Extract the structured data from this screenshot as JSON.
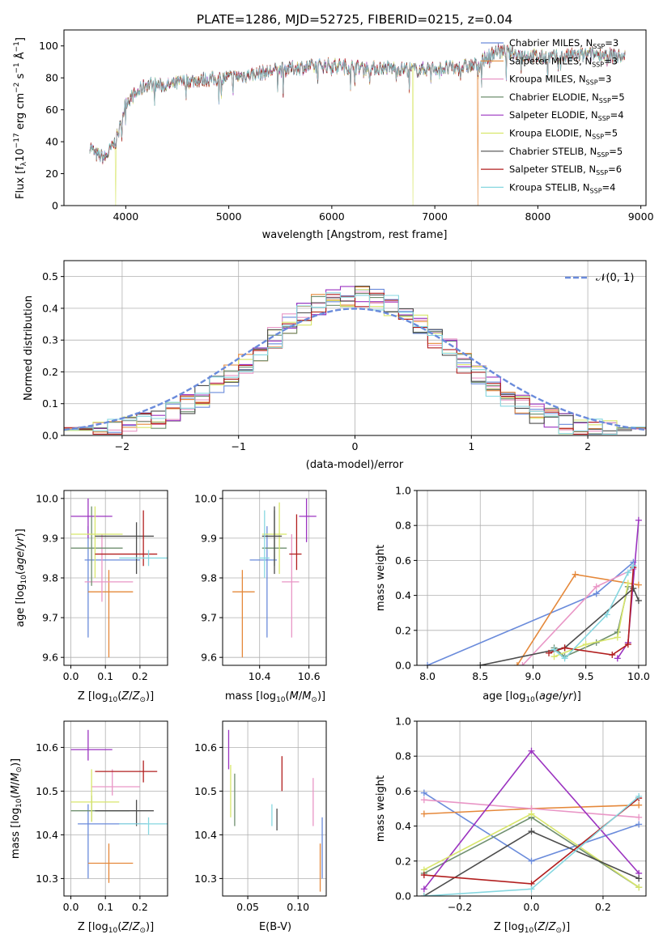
{
  "colors": {
    "c0": "#6a8bdb",
    "c1": "#e5883a",
    "c2": "#e996c6",
    "c3": "#6f8f6f",
    "c4": "#9b33c0",
    "c5": "#d8e66b",
    "c6": "#4c4c4c",
    "c7": "#b21f1f",
    "c8": "#86d7e0",
    "dashed": "#6a8bdb",
    "grid": "#b0b0b0"
  },
  "chart_data": [
    {
      "id": "spectrum",
      "type": "line",
      "title": "PLATE=1286, MJD=52725, FIBERID=0215, z=0.04",
      "xlabel": "wavelength [Angstrom, rest frame]",
      "ylabel": "Flux [fλ10⁻¹⁷ erg cm⁻² s⁻¹ Å⁻¹]",
      "xlim": [
        3400,
        9050
      ],
      "ylim": [
        0,
        110
      ],
      "xticks": [
        "4000",
        "5000",
        "6000",
        "7000",
        "8000",
        "9000"
      ],
      "yticks": [
        "0",
        "20",
        "40",
        "60",
        "80",
        "100"
      ],
      "grid": false,
      "legend_position": "top-right",
      "series": [
        {
          "name": "Chabrier MILES, N",
          "sub": "SSP",
          "suffix": "=3"
        },
        {
          "name": "Salpeter MILES, N",
          "sub": "SSP",
          "suffix": "=3"
        },
        {
          "name": "Kroupa MILES, N",
          "sub": "SSP",
          "suffix": "=3"
        },
        {
          "name": "Chabrier ELODIE, N",
          "sub": "SSP",
          "suffix": "=5"
        },
        {
          "name": "Salpeter ELODIE, N",
          "sub": "SSP",
          "suffix": "=4"
        },
        {
          "name": "Kroupa ELODIE, N",
          "sub": "SSP",
          "suffix": "=5"
        },
        {
          "name": "Chabrier STELIB, N",
          "sub": "SSP",
          "suffix": "=5"
        },
        {
          "name": "Salpeter STELIB, N",
          "sub": "SSP",
          "suffix": "=6"
        },
        {
          "name": "Kroupa STELIB, N",
          "sub": "SSP",
          "suffix": "=4"
        }
      ],
      "continuum": [
        [
          3650,
          38
        ],
        [
          3700,
          32
        ],
        [
          3800,
          30
        ],
        [
          3900,
          40
        ],
        [
          3950,
          50
        ],
        [
          4000,
          65
        ],
        [
          4100,
          70
        ],
        [
          4200,
          76
        ],
        [
          4400,
          75
        ],
        [
          4600,
          78
        ],
        [
          4800,
          79
        ],
        [
          5000,
          80
        ],
        [
          5200,
          82
        ],
        [
          5400,
          84
        ],
        [
          5600,
          86
        ],
        [
          5800,
          87
        ],
        [
          6000,
          88
        ],
        [
          6200,
          87
        ],
        [
          6400,
          86
        ],
        [
          6600,
          86
        ],
        [
          6800,
          85
        ],
        [
          7000,
          86
        ],
        [
          7200,
          86
        ],
        [
          7400,
          88
        ],
        [
          7600,
          97
        ],
        [
          7800,
          95
        ],
        [
          8000,
          93
        ],
        [
          8200,
          93
        ],
        [
          8400,
          94
        ],
        [
          8600,
          95
        ],
        [
          8800,
          93
        ]
      ],
      "drops": [
        [
          3900,
          "c5",
          0
        ],
        [
          6790,
          "c5",
          0
        ],
        [
          7420,
          "c1",
          0
        ]
      ]
    },
    {
      "id": "residuals",
      "type": "step-histogram",
      "xlabel": "(data-model)/error",
      "ylabel": "Normed distribution",
      "xlim": [
        -2.5,
        2.5
      ],
      "ylim": [
        0,
        0.55
      ],
      "xticks": [
        "−2",
        "−1",
        "0",
        "1",
        "2"
      ],
      "yticks": [
        "0.0",
        "0.1",
        "0.2",
        "0.3",
        "0.4",
        "0.5"
      ],
      "grid": true,
      "legend_position": "top-right",
      "legend_label": "𝒩(0, 1)",
      "bin_width": 0.125
    },
    {
      "id": "age-vs-Z",
      "type": "errorbar",
      "xlabel": "Z [log₁₀(Z/Z⊙)]",
      "ylabel": "age  [log₁₀(age/yr)]",
      "xlim": [
        -0.02,
        0.28
      ],
      "ylim": [
        9.58,
        10.02
      ],
      "xticks": [
        "0.0",
        "0.1",
        "0.2"
      ],
      "yticks": [
        "9.6",
        "9.7",
        "9.8",
        "9.9",
        "10.0"
      ],
      "points": [
        {
          "c": "c0",
          "x": 0.05,
          "y": 9.845,
          "xe": [
            0.04,
            0.2
          ],
          "ye": [
            9.65,
            9.93
          ]
        },
        {
          "c": "c1",
          "x": 0.11,
          "y": 9.765,
          "xe": [
            0.05,
            0.18
          ],
          "ye": [
            9.6,
            9.82
          ]
        },
        {
          "c": "c2",
          "x": 0.09,
          "y": 9.79,
          "xe": [
            0.04,
            0.18
          ],
          "ye": [
            9.74,
            9.91
          ]
        },
        {
          "c": "c3",
          "x": 0.06,
          "y": 9.875,
          "xe": [
            0.0,
            0.15
          ],
          "ye": [
            9.78,
            9.98
          ]
        },
        {
          "c": "c4",
          "x": 0.05,
          "y": 9.955,
          "xe": [
            0.0,
            0.12
          ],
          "ye": [
            9.9,
            10.0
          ]
        },
        {
          "c": "c5",
          "x": 0.07,
          "y": 9.91,
          "xe": [
            0.0,
            0.15
          ],
          "ye": [
            9.8,
            9.98
          ]
        },
        {
          "c": "c6",
          "x": 0.19,
          "y": 9.905,
          "xe": [
            0.07,
            0.24
          ],
          "ye": [
            9.81,
            9.94
          ]
        },
        {
          "c": "c7",
          "x": 0.21,
          "y": 9.86,
          "xe": [
            0.07,
            0.25
          ],
          "ye": [
            9.83,
            9.97
          ]
        },
        {
          "c": "c8",
          "x": 0.225,
          "y": 9.85,
          "xe": [
            0.14,
            0.28
          ],
          "ye": [
            9.83,
            9.87
          ]
        }
      ]
    },
    {
      "id": "age-vs-mass",
      "type": "errorbar",
      "xlabel": "mass [log₁₀(M/M⊙)]",
      "ylabel": "",
      "xlim": [
        10.25,
        10.67
      ],
      "ylim": [
        9.58,
        10.02
      ],
      "xticks": [
        "10.4",
        "10.6"
      ],
      "yticks": [
        "9.6",
        "9.7",
        "9.8",
        "9.9",
        "10.0"
      ],
      "points": [
        {
          "c": "c0",
          "x": 10.43,
          "y": 9.845,
          "xe": [
            10.36,
            10.47
          ],
          "ye": [
            9.65,
            9.93
          ]
        },
        {
          "c": "c1",
          "x": 10.33,
          "y": 9.765,
          "xe": [
            10.29,
            10.38
          ],
          "ye": [
            9.6,
            9.82
          ]
        },
        {
          "c": "c2",
          "x": 10.53,
          "y": 9.79,
          "xe": [
            10.49,
            10.56
          ],
          "ye": [
            9.65,
            9.91
          ]
        },
        {
          "c": "c3",
          "x": 10.46,
          "y": 9.875,
          "xe": [
            10.41,
            10.51
          ],
          "ye": [
            9.83,
            9.97
          ]
        },
        {
          "c": "c4",
          "x": 10.59,
          "y": 9.955,
          "xe": [
            10.56,
            10.63
          ],
          "ye": [
            9.89,
            10.0
          ]
        },
        {
          "c": "c5",
          "x": 10.48,
          "y": 9.91,
          "xe": [
            10.41,
            10.51
          ],
          "ye": [
            9.81,
            9.99
          ]
        },
        {
          "c": "c6",
          "x": 10.46,
          "y": 9.905,
          "xe": [
            10.41,
            10.49
          ],
          "ye": [
            9.81,
            9.98
          ]
        },
        {
          "c": "c7",
          "x": 10.55,
          "y": 9.86,
          "xe": [
            10.52,
            10.57
          ],
          "ye": [
            9.82,
            9.96
          ]
        },
        {
          "c": "c8",
          "x": 10.42,
          "y": 9.85,
          "xe": [
            10.4,
            10.44
          ],
          "ye": [
            9.8,
            9.97
          ]
        }
      ]
    },
    {
      "id": "massweight-vs-age",
      "type": "line",
      "xlabel": "age  [log₁₀(age/yr)]",
      "ylabel": "mass weight",
      "xlim": [
        7.9,
        10.07
      ],
      "ylim": [
        0,
        1.0
      ],
      "xticks": [
        "8.0",
        "8.5",
        "9.0",
        "9.5",
        "10.0"
      ],
      "yticks": [
        "0.0",
        "0.2",
        "0.4",
        "0.6",
        "0.8",
        "1.0"
      ],
      "grid": true,
      "series": [
        {
          "c": "c0",
          "x": [
            8.0,
            9.6,
            9.95
          ],
          "y": [
            0.0,
            0.41,
            0.59
          ]
        },
        {
          "c": "c1",
          "x": [
            8.85,
            9.4,
            10.0
          ],
          "y": [
            0.0,
            0.52,
            0.46
          ]
        },
        {
          "c": "c2",
          "x": [
            8.9,
            9.6,
            9.95
          ],
          "y": [
            0.0,
            0.45,
            0.55
          ]
        },
        {
          "c": "c3",
          "x": [
            9.2,
            9.3,
            9.6,
            9.8,
            9.9
          ],
          "y": [
            0.1,
            0.05,
            0.13,
            0.19,
            0.45
          ]
        },
        {
          "c": "c4",
          "x": [
            9.8,
            9.9,
            10.0
          ],
          "y": [
            0.04,
            0.13,
            0.83
          ]
        },
        {
          "c": "c5",
          "x": [
            9.2,
            9.5,
            9.8,
            9.9
          ],
          "y": [
            0.05,
            0.12,
            0.16,
            0.47
          ]
        },
        {
          "c": "c6",
          "x": [
            8.5,
            9.3,
            9.95,
            10.0
          ],
          "y": [
            0.0,
            0.1,
            0.44,
            0.37
          ]
        },
        {
          "c": "c7",
          "x": [
            9.15,
            9.3,
            9.75,
            9.9,
            9.95
          ],
          "y": [
            0.07,
            0.1,
            0.06,
            0.12,
            0.56
          ]
        },
        {
          "c": "c8",
          "x": [
            9.2,
            9.3,
            9.7,
            9.9,
            9.95
          ],
          "y": [
            0.09,
            0.04,
            0.29,
            0.53,
            0.57
          ]
        }
      ]
    },
    {
      "id": "mass-vs-Z",
      "type": "errorbar",
      "xlabel": "Z [log₁₀(Z/Z⊙)]",
      "ylabel": "mass [log₁₀(M/M⊙)]",
      "xlim": [
        -0.02,
        0.28
      ],
      "ylim": [
        10.26,
        10.66
      ],
      "xticks": [
        "0.0",
        "0.1",
        "0.2"
      ],
      "yticks": [
        "10.3",
        "10.4",
        "10.5",
        "10.6"
      ],
      "points": [
        {
          "c": "c0",
          "x": 0.05,
          "y": 10.425,
          "xe": [
            0.02,
            0.22
          ],
          "ye": [
            10.3,
            10.47
          ]
        },
        {
          "c": "c1",
          "x": 0.11,
          "y": 10.335,
          "xe": [
            0.05,
            0.18
          ],
          "ye": [
            10.29,
            10.38
          ]
        },
        {
          "c": "c2",
          "x": 0.12,
          "y": 10.51,
          "xe": [
            0.06,
            0.2
          ],
          "ye": [
            10.49,
            10.55
          ]
        },
        {
          "c": "c3",
          "x": 0.06,
          "y": 10.455,
          "xe": [
            0.0,
            0.17
          ],
          "ye": [
            10.43,
            10.49
          ]
        },
        {
          "c": "c4",
          "x": 0.05,
          "y": 10.595,
          "xe": [
            0.0,
            0.12
          ],
          "ye": [
            10.57,
            10.64
          ]
        },
        {
          "c": "c5",
          "x": 0.06,
          "y": 10.475,
          "xe": [
            0.0,
            0.14
          ],
          "ye": [
            10.43,
            10.55
          ]
        },
        {
          "c": "c6",
          "x": 0.19,
          "y": 10.455,
          "xe": [
            0.07,
            0.24
          ],
          "ye": [
            10.42,
            10.48
          ]
        },
        {
          "c": "c7",
          "x": 0.21,
          "y": 10.545,
          "xe": [
            0.07,
            0.25
          ],
          "ye": [
            10.52,
            10.57
          ]
        },
        {
          "c": "c8",
          "x": 0.225,
          "y": 10.425,
          "xe": [
            0.14,
            0.28
          ],
          "ye": [
            10.4,
            10.44
          ]
        }
      ]
    },
    {
      "id": "mass-vs-EBV",
      "type": "errorbar",
      "xlabel": "E(B-V)",
      "ylabel": "",
      "xlim": [
        0.025,
        0.128
      ],
      "ylim": [
        10.26,
        10.66
      ],
      "xticks": [
        "0.05",
        "0.10"
      ],
      "yticks": [
        "10.3",
        "10.4",
        "10.5",
        "10.6"
      ],
      "points": [
        {
          "c": "c0",
          "x": 0.124,
          "y": 10.38,
          "xe": [
            0.124,
            0.124
          ],
          "ye": [
            10.3,
            10.44
          ]
        },
        {
          "c": "c1",
          "x": 0.122,
          "y": 10.32,
          "xe": [
            0.122,
            0.122
          ],
          "ye": [
            10.27,
            10.38
          ]
        },
        {
          "c": "c2",
          "x": 0.115,
          "y": 10.48,
          "xe": [
            0.115,
            0.115
          ],
          "ye": [
            10.42,
            10.53
          ]
        },
        {
          "c": "c3",
          "x": 0.037,
          "y": 10.48,
          "xe": [
            0.037,
            0.037
          ],
          "ye": [
            10.42,
            10.54
          ]
        },
        {
          "c": "c4",
          "x": 0.031,
          "y": 10.6,
          "xe": [
            0.031,
            0.031
          ],
          "ye": [
            10.55,
            10.64
          ]
        },
        {
          "c": "c5",
          "x": 0.033,
          "y": 10.5,
          "xe": [
            0.033,
            0.033
          ],
          "ye": [
            10.44,
            10.56
          ]
        },
        {
          "c": "c6",
          "x": 0.079,
          "y": 10.44,
          "xe": [
            0.079,
            0.079
          ],
          "ye": [
            10.41,
            10.46
          ]
        },
        {
          "c": "c7",
          "x": 0.084,
          "y": 10.54,
          "xe": [
            0.084,
            0.084
          ],
          "ye": [
            10.5,
            10.58
          ]
        },
        {
          "c": "c8",
          "x": 0.074,
          "y": 10.44,
          "xe": [
            0.074,
            0.074
          ],
          "ye": [
            10.42,
            10.47
          ]
        }
      ]
    },
    {
      "id": "massweight-vs-Z",
      "type": "line",
      "xlabel": "Z [log₁₀(Z/Z⊙)]",
      "ylabel": "mass weight",
      "xlim": [
        -0.32,
        0.32
      ],
      "ylim": [
        0,
        1.0
      ],
      "xticks": [
        "−0.2",
        "0.0",
        "0.2"
      ],
      "yticks": [
        "0.0",
        "0.2",
        "0.4",
        "0.6",
        "0.8",
        "1.0"
      ],
      "grid": true,
      "series": [
        {
          "c": "c0",
          "x": [
            -0.3,
            0.0,
            0.3
          ],
          "y": [
            0.59,
            0.2,
            0.41
          ]
        },
        {
          "c": "c1",
          "x": [
            -0.3,
            0.0,
            0.3
          ],
          "y": [
            0.47,
            0.5,
            0.52
          ]
        },
        {
          "c": "c2",
          "x": [
            -0.3,
            0.0,
            0.3
          ],
          "y": [
            0.55,
            0.5,
            0.45
          ]
        },
        {
          "c": "c3",
          "x": [
            -0.3,
            0.0,
            0.3
          ],
          "y": [
            0.13,
            0.45,
            0.05
          ]
        },
        {
          "c": "c4",
          "x": [
            -0.3,
            0.0,
            0.3
          ],
          "y": [
            0.04,
            0.83,
            0.13
          ]
        },
        {
          "c": "c5",
          "x": [
            -0.3,
            0.0,
            0.3
          ],
          "y": [
            0.15,
            0.47,
            0.05
          ]
        },
        {
          "c": "c6",
          "x": [
            -0.3,
            0.0,
            0.3
          ],
          "y": [
            0.0,
            0.37,
            0.1
          ]
        },
        {
          "c": "c7",
          "x": [
            -0.3,
            0.0,
            0.3
          ],
          "y": [
            0.12,
            0.07,
            0.56
          ]
        },
        {
          "c": "c8",
          "x": [
            -0.3,
            0.0,
            0.3
          ],
          "y": [
            0.0,
            0.04,
            0.57
          ]
        }
      ]
    }
  ]
}
